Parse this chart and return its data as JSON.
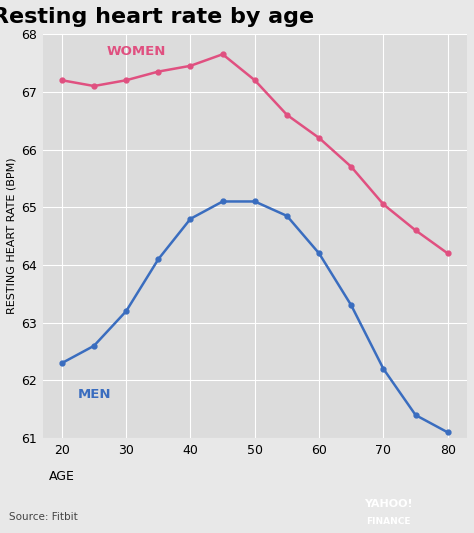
{
  "title": "Resting heart rate by age",
  "xlabel": "AGE",
  "ylabel": "RESTING HEART RATE (BPM)",
  "outer_bg": "#e8e8e8",
  "plot_bg": "#dcdcdc",
  "ages": [
    20,
    25,
    30,
    35,
    40,
    45,
    50,
    55,
    60,
    65,
    70,
    75,
    80
  ],
  "women": [
    67.2,
    67.1,
    67.2,
    67.35,
    67.45,
    67.65,
    67.2,
    66.6,
    66.2,
    65.7,
    65.05,
    64.6,
    64.2
  ],
  "men": [
    62.3,
    62.6,
    63.2,
    64.1,
    64.8,
    65.1,
    65.1,
    64.85,
    64.2,
    63.3,
    62.2,
    61.4,
    61.1
  ],
  "women_color": "#e05080",
  "men_color": "#3a6dbf",
  "ylim": [
    61,
    68
  ],
  "yticks": [
    61,
    62,
    63,
    64,
    65,
    66,
    67,
    68
  ],
  "xticks": [
    20,
    30,
    40,
    50,
    60,
    70,
    80
  ],
  "title_fontsize": 16,
  "label_fontsize": 8,
  "tick_fontsize": 9,
  "source_text": "Source: Fitbit",
  "women_label": "WOMEN",
  "men_label": "MEN",
  "logo_color": "#5b0ea6"
}
